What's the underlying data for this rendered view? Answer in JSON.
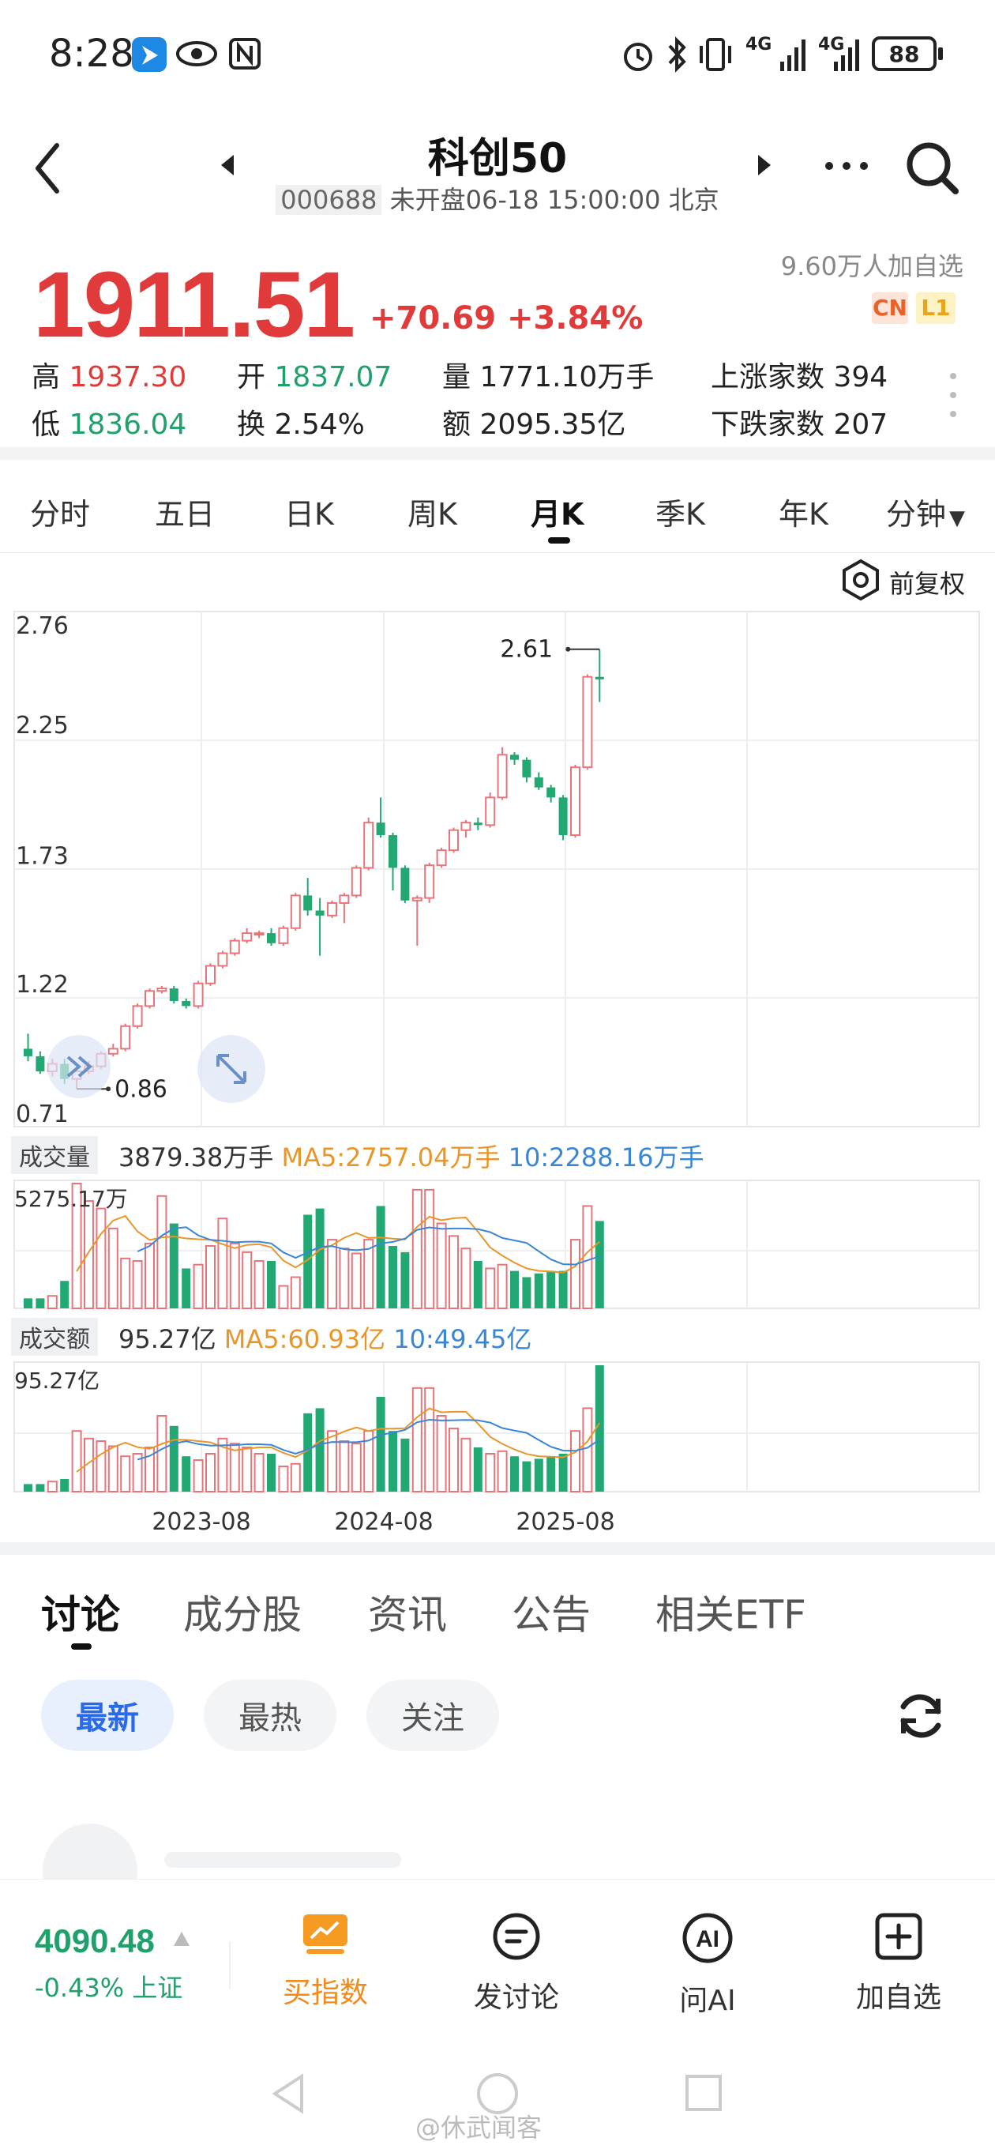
{
  "status_bar": {
    "time": "8:28",
    "battery": "88",
    "net1": "4G",
    "net2": "4G"
  },
  "header": {
    "title": "科创50",
    "code": "000688",
    "subtitle": "未开盘06-18 15:00:00 北京"
  },
  "quote": {
    "watchers": "9.60万人加自选",
    "price": "1911.51",
    "change": "+70.69",
    "change_pct": "+3.84%",
    "badge_cn": "CN",
    "badge_l1": "L1",
    "high_label": "高",
    "high": "1937.30",
    "open_label": "开",
    "open": "1837.07",
    "volume_label": "量",
    "volume": "1771.10万手",
    "rise_label": "上涨家数",
    "rise": "394",
    "low_label": "低",
    "low": "1836.04",
    "turnover_label": "换",
    "turnover": "2.54%",
    "amount_label": "额",
    "amount": "2095.35亿",
    "fall_label": "下跌家数",
    "fall": "207"
  },
  "period_tabs": [
    "分时",
    "五日",
    "日K",
    "周K",
    "月K",
    "季K",
    "年K",
    "分钟"
  ],
  "active_period": "月K",
  "chart": {
    "adjust_label": "前复权",
    "volume_label": "成交量",
    "volume_value": "3879.38万手",
    "volume_ma5": "MA5:2757.04万手",
    "volume_ma10": "10:2288.16万手",
    "volume_max": "5275.17万",
    "amount_label": "成交额",
    "amount_value": "95.27亿",
    "amount_ma5": "MA5:60.93亿",
    "amount_ma10": "10:49.45亿",
    "amount_max": "95.27亿",
    "high_mark": "2.61",
    "low_mark": "0.86"
  },
  "chart_data": {
    "type": "candlestick",
    "y_ticks": [
      "2.76",
      "2.25",
      "1.73",
      "1.22",
      "0.71"
    ],
    "ylim": [
      0.71,
      2.76
    ],
    "x_ticks": [
      "2023-08",
      "2024-08",
      "2025-08"
    ],
    "candles": [
      [
        1.02,
        0.99,
        1.08,
        0.97
      ],
      [
        0.99,
        0.93,
        1.01,
        0.92
      ],
      [
        0.93,
        0.96,
        0.98,
        0.91
      ],
      [
        0.96,
        0.9,
        0.98,
        0.88
      ],
      [
        0.9,
        0.93,
        0.95,
        0.86
      ],
      [
        0.93,
        0.95,
        0.97,
        0.92
      ],
      [
        0.95,
        1.0,
        1.01,
        0.94
      ],
      [
        1.0,
        1.02,
        1.04,
        0.99
      ],
      [
        1.02,
        1.11,
        1.12,
        1.01
      ],
      [
        1.11,
        1.19,
        1.2,
        1.1
      ],
      [
        1.19,
        1.25,
        1.26,
        1.18
      ],
      [
        1.25,
        1.26,
        1.27,
        1.24
      ],
      [
        1.26,
        1.21,
        1.27,
        1.2
      ],
      [
        1.21,
        1.19,
        1.22,
        1.18
      ],
      [
        1.19,
        1.28,
        1.29,
        1.18
      ],
      [
        1.28,
        1.35,
        1.36,
        1.27
      ],
      [
        1.35,
        1.4,
        1.41,
        1.34
      ],
      [
        1.4,
        1.45,
        1.46,
        1.39
      ],
      [
        1.45,
        1.48,
        1.5,
        1.44
      ],
      [
        1.48,
        1.48,
        1.49,
        1.46
      ],
      [
        1.48,
        1.44,
        1.5,
        1.43
      ],
      [
        1.44,
        1.5,
        1.51,
        1.43
      ],
      [
        1.5,
        1.63,
        1.64,
        1.49
      ],
      [
        1.63,
        1.57,
        1.7,
        1.55
      ],
      [
        1.57,
        1.55,
        1.62,
        1.39
      ],
      [
        1.55,
        1.6,
        1.61,
        1.54
      ],
      [
        1.6,
        1.63,
        1.64,
        1.52
      ],
      [
        1.63,
        1.74,
        1.75,
        1.62
      ],
      [
        1.74,
        1.92,
        1.94,
        1.73
      ],
      [
        1.92,
        1.87,
        2.02,
        1.86
      ],
      [
        1.87,
        1.74,
        1.88,
        1.65
      ],
      [
        1.74,
        1.61,
        1.75,
        1.6
      ],
      [
        1.61,
        1.62,
        1.63,
        1.43
      ],
      [
        1.62,
        1.75,
        1.76,
        1.6
      ],
      [
        1.75,
        1.81,
        1.82,
        1.74
      ],
      [
        1.81,
        1.89,
        1.9,
        1.8
      ],
      [
        1.89,
        1.92,
        1.93,
        1.86
      ],
      [
        1.92,
        1.91,
        1.94,
        1.89
      ],
      [
        1.91,
        2.02,
        2.04,
        1.9
      ],
      [
        2.02,
        2.19,
        2.22,
        2.01
      ],
      [
        2.19,
        2.17,
        2.2,
        2.15
      ],
      [
        2.17,
        2.1,
        2.18,
        2.08
      ],
      [
        2.1,
        2.06,
        2.12,
        2.05
      ],
      [
        2.06,
        2.02,
        2.07,
        2.0
      ],
      [
        2.02,
        1.87,
        2.03,
        1.85
      ],
      [
        1.87,
        2.14,
        2.15,
        1.86
      ],
      [
        2.14,
        2.5,
        2.51,
        2.13
      ],
      [
        2.5,
        2.49,
        2.61,
        2.4
      ]
    ],
    "volumes": [
      8,
      8,
      10,
      22,
      100,
      86,
      80,
      64,
      40,
      38,
      52,
      90,
      68,
      32,
      35,
      50,
      72,
      52,
      45,
      38,
      38,
      18,
      25,
      75,
      80,
      55,
      48,
      44,
      55,
      82,
      50,
      45,
      95,
      95,
      68,
      58,
      48,
      38,
      32,
      35,
      30,
      25,
      28,
      30,
      30,
      55,
      82,
      70
    ],
    "amounts": [
      6,
      6,
      8,
      10,
      48,
      42,
      40,
      36,
      28,
      30,
      35,
      60,
      52,
      28,
      25,
      30,
      42,
      38,
      35,
      30,
      30,
      20,
      22,
      62,
      66,
      48,
      40,
      38,
      48,
      75,
      48,
      42,
      82,
      82,
      60,
      50,
      42,
      35,
      30,
      32,
      28,
      24,
      26,
      28,
      30,
      48,
      66,
      100
    ]
  },
  "discussion": {
    "tabs": [
      "讨论",
      "成分股",
      "资讯",
      "公告",
      "相关ETF"
    ],
    "filters": [
      "最新",
      "最热",
      "关注"
    ]
  },
  "bottom": {
    "sh_index": "4090.48",
    "sh_change": "-0.43% 上证",
    "actions": [
      "买指数",
      "发讨论",
      "问AI",
      "加自选"
    ],
    "ai_text": "AI"
  },
  "watermark": "@休武闻客"
}
